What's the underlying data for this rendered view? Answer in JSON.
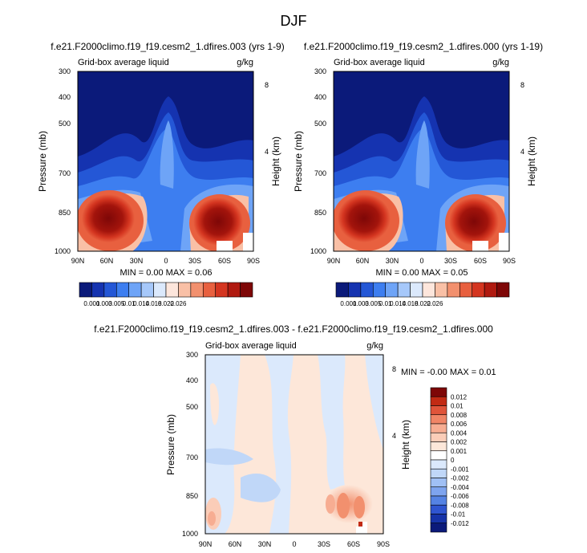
{
  "page_title": "DJF",
  "chart_data": [
    {
      "type": "heatmap",
      "title": "f.e21.F2000climo.f19_f19.cesm2_1.dfires.003 (yrs 1-9)",
      "left_label": "Grid-box average liquid",
      "units": "g/kg",
      "ylabel": "Pressure (mb)",
      "y2label": "Height (km)",
      "xticks": [
        "90N",
        "60N",
        "30N",
        "0",
        "30S",
        "60S",
        "90S"
      ],
      "yticks": [
        "300",
        "400",
        "500",
        "700",
        "850",
        "1000"
      ],
      "y2ticks": [
        "8",
        "4"
      ],
      "ylim": [
        1000,
        300
      ],
      "xlim": [
        "90N",
        "90S"
      ],
      "stats": "MIN =  0.00  MAX =  0.06",
      "min": 0.0,
      "max": 0.06,
      "colorbar": {
        "orientation": "horizontal",
        "levels": [
          "0.001",
          "0.003",
          "0.005",
          "0.01",
          "0.014",
          "0.018",
          "0.022",
          "0.026"
        ]
      }
    },
    {
      "type": "heatmap",
      "title": "f.e21.F2000climo.f19_f19.cesm2_1.dfires.000 (yrs 1-19)",
      "left_label": "Grid-box average liquid",
      "units": "g/kg",
      "ylabel": "Pressure (mb)",
      "y2label": "Height (km)",
      "xticks": [
        "90N",
        "60N",
        "30N",
        "0",
        "30S",
        "60S",
        "90S"
      ],
      "yticks": [
        "300",
        "400",
        "500",
        "700",
        "850",
        "1000"
      ],
      "y2ticks": [
        "8",
        "4"
      ],
      "ylim": [
        1000,
        300
      ],
      "xlim": [
        "90N",
        "90S"
      ],
      "stats": "MIN =  0.00  MAX =  0.05",
      "min": 0.0,
      "max": 0.05,
      "colorbar": {
        "orientation": "horizontal",
        "levels": [
          "0.001",
          "0.003",
          "0.005",
          "0.01",
          "0.014",
          "0.018",
          "0.022",
          "0.026"
        ]
      }
    },
    {
      "type": "heatmap",
      "title": "f.e21.F2000climo.f19_f19.cesm2_1.dfires.003 - f.e21.F2000climo.f19_f19.cesm2_1.dfires.000",
      "left_label": "Grid-box average liquid",
      "units": "g/kg",
      "ylabel": "Pressure (mb)",
      "y2label": "Height (km)",
      "xticks": [
        "90N",
        "60N",
        "30N",
        "0",
        "30S",
        "60S",
        "90S"
      ],
      "yticks": [
        "300",
        "400",
        "500",
        "700",
        "850",
        "1000"
      ],
      "y2ticks": [
        "8",
        "4"
      ],
      "ylim": [
        1000,
        300
      ],
      "xlim": [
        "90N",
        "90S"
      ],
      "stats": "MIN = -0.00  MAX =  0.01",
      "min": -0.0,
      "max": 0.01,
      "colorbar": {
        "orientation": "vertical",
        "levels": [
          "0.012",
          "0.01",
          "0.008",
          "0.006",
          "0.004",
          "0.002",
          "0.001",
          "0",
          "-0.001",
          "-0.002",
          "-0.004",
          "-0.006",
          "-0.008",
          "-0.01",
          "-0.012"
        ]
      }
    }
  ],
  "colors": {
    "seq_scale": [
      "#0b1a7a",
      "#1533b0",
      "#2457d6",
      "#3d7ef0",
      "#6ea4f7",
      "#a6c8fa",
      "#dbe9fc",
      "#fde6dc",
      "#f9c0a6",
      "#f2906e",
      "#e8603f",
      "#d43520",
      "#b01a10",
      "#7e0707"
    ],
    "div_scale": [
      "#7e0707",
      "#c22a14",
      "#e0543a",
      "#f08566",
      "#f7ad92",
      "#fbcdb8",
      "#fde7d9",
      "#ffffff",
      "#dbe9fc",
      "#c0d7f8",
      "#a0c0f5",
      "#7ea4ef",
      "#5583e4",
      "#2f55d0",
      "#1633a8",
      "#0b1a7a"
    ]
  }
}
